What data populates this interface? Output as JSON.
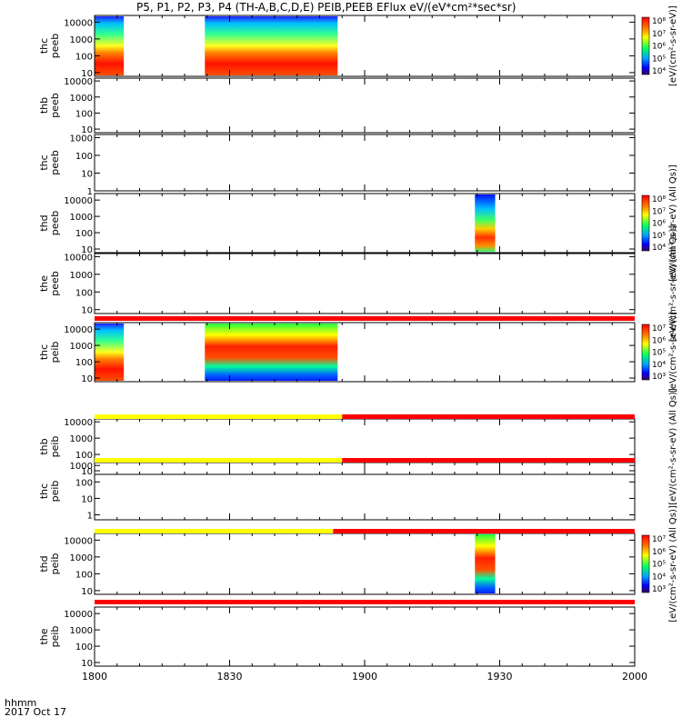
{
  "title": "P5, P1, P2, P3, P4 (TH-A,B,C,D,E) PEIB,PEEB EFlux eV/(eV*cm²*sec*sr)",
  "footer": {
    "time_label": "hhmm",
    "date_label": "2017 Oct 17"
  },
  "chart_data": {
    "type": "heatmap",
    "title": "P5, P1, P2, P3, P4 (TH-A,B,C,D,E) PEIB,PEEB EFlux eV/(eV*cm²*sec*sr)",
    "x_ticks": [
      "1800",
      "1830",
      "1900",
      "1930",
      "2000"
    ],
    "xlim_minutes": [
      0,
      120
    ],
    "y_scale": "log",
    "panels": [
      {
        "name": "thc_peeb",
        "ylabel": [
          "thc",
          "peeb"
        ],
        "yticks": [
          "10",
          "100",
          "1000",
          "10000"
        ],
        "ylim": [
          6,
          25000
        ],
        "segments": [
          [
            0,
            6.5,
            "high"
          ],
          [
            24.5,
            54,
            "high"
          ]
        ],
        "colorbar": {
          "label": "eV/(cm²-s-sr-eV)",
          "ticks": [
            "10⁸",
            "10⁷",
            "10⁶",
            "10⁵",
            "10⁴"
          ]
        }
      },
      {
        "name": "thb_peeb",
        "ylabel": [
          "thb",
          "peeb"
        ],
        "yticks": [
          "10",
          "100",
          "1000",
          "10000"
        ],
        "ylim": [
          6,
          15000
        ],
        "segments": []
      },
      {
        "name": "thc_peeb_2",
        "ylabel": [
          "thc",
          "peeb"
        ],
        "yticks": [
          "1",
          "10",
          "100",
          "1000"
        ],
        "ylim": [
          1,
          1500
        ],
        "segments": []
      },
      {
        "name": "thd_peeb",
        "ylabel": [
          "thd",
          "peeb"
        ],
        "yticks": [
          "10",
          "100",
          "1000",
          "10000"
        ],
        "ylim": [
          6,
          25000
        ],
        "segments": [
          [
            84.5,
            89,
            "mid"
          ]
        ],
        "colorbar": {
          "label": "eV/(cm²-s-sr-eV) (All Qs)",
          "ticks": [
            "10⁸",
            "10⁷",
            "10⁶",
            "10⁵",
            "10⁴"
          ]
        }
      },
      {
        "name": "the_peeb",
        "ylabel": [
          "the",
          "peeb"
        ],
        "yticks": [
          "10",
          "100",
          "1000",
          "10000"
        ],
        "ylim": [
          6,
          15000
        ],
        "segments": [],
        "colorbar_label": "eV/(cm²-s-sr-eV) (All Qs)"
      },
      {
        "name": "thc_peib",
        "ylabel": [
          "thc",
          "peib"
        ],
        "yticks": [
          "10",
          "100",
          "1000",
          "10000"
        ],
        "ylim": [
          6,
          25000
        ],
        "segments": [
          [
            0,
            6.5,
            "high"
          ],
          [
            24.5,
            54,
            "ion"
          ]
        ],
        "colorbar": {
          "label": "eV/(cm²-s-sr-eV)",
          "ticks": [
            "10⁷",
            "10⁶",
            "10⁵",
            "10⁴",
            "10³"
          ]
        }
      },
      {
        "name": "thb_peib",
        "ylabel": [
          "thb",
          "peib"
        ],
        "yticks": [
          "10",
          "100",
          "1000",
          "10000"
        ],
        "ylim": [
          6,
          15000
        ],
        "segments": [],
        "colorbar_label": "eV/(cm²-s-sr-eV) (All Qs)"
      },
      {
        "name": "thc_peib_2",
        "ylabel": [
          "thc",
          "peib"
        ],
        "yticks": [
          "1",
          "10",
          "100",
          "1000"
        ],
        "ylim": [
          0.5,
          1500
        ],
        "segments": []
      },
      {
        "name": "thd_peib",
        "ylabel": [
          "thd",
          "peib"
        ],
        "yticks": [
          "10",
          "100",
          "1000",
          "10000"
        ],
        "ylim": [
          6,
          25000
        ],
        "segments": [
          [
            84.5,
            89,
            "ion"
          ]
        ],
        "colorbar": {
          "label": "eV/(cm²-s-sr-eV) (All Qs)",
          "ticks": [
            "10⁷",
            "10⁶",
            "10⁵",
            "10⁴",
            "10³"
          ]
        }
      },
      {
        "name": "the_peib",
        "ylabel": [
          "the",
          "peib"
        ],
        "yticks": [
          "10",
          "100",
          "1000",
          "10000"
        ],
        "ylim": [
          6,
          25000
        ],
        "segments": []
      }
    ],
    "mode_bars": [
      {
        "after_panel": 4,
        "segments": [
          [
            0,
            120,
            "#ff0000"
          ]
        ]
      },
      {
        "after_panel": 5,
        "segments": [
          [
            0,
            55,
            "#ffff00"
          ],
          [
            55,
            120,
            "#ff0000"
          ]
        ]
      },
      {
        "after_panel": 6,
        "segments": [
          [
            0,
            55,
            "#ffff00"
          ],
          [
            55,
            120,
            "#ff0000"
          ]
        ]
      },
      {
        "after_panel": 7,
        "segments": [
          [
            0,
            53,
            "#ffff00"
          ],
          [
            53,
            120,
            "#ff0000"
          ]
        ]
      },
      {
        "after_panel": 8,
        "segments": [
          [
            0,
            120,
            "#ff0000"
          ]
        ]
      }
    ]
  }
}
